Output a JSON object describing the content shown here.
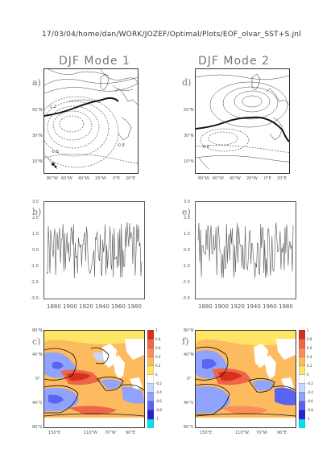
{
  "header": "17/03/04/home/dan/WORK/JOZEF/Optimal/Plots/EOF_olvar_SST+S.jnl",
  "columns": [
    {
      "title": "DJF Mode 1",
      "map_label": "a)",
      "ts_label": "b)",
      "sst_label": "c)",
      "map_lat_ticks": [
        "50°N",
        "30°N",
        "10°N"
      ],
      "map_lon_ticks": [
        "80°W",
        "60°W",
        "40°W",
        "20°W",
        "0°E",
        "20°E"
      ],
      "contour_labels": [
        "-1.2",
        "-0.8",
        "-0.8"
      ]
    },
    {
      "title": "DJF Mode 2",
      "map_label": "d)",
      "ts_label": "e)",
      "sst_label": "f)",
      "map_lat_ticks": [
        "50°N",
        "30°N",
        "10°N"
      ],
      "map_lon_ticks": [
        "80°W",
        "60°W",
        "40°W",
        "20°W",
        "0°E",
        "20°E"
      ],
      "contour_labels": [
        "-0.8"
      ]
    }
  ],
  "ts_y_ticks": [
    "3.0",
    "2.0",
    "1.0",
    "0.0",
    "-1.0",
    "-2.0",
    "-3.0"
  ],
  "ts_x_ticks": [
    "1880",
    "1900",
    "1920",
    "1940",
    "1960",
    "1980"
  ],
  "sst_lat_ticks": [
    "80°N",
    "40°N",
    "0°",
    "40°S",
    "80°S"
  ],
  "sst_lon_ticks": [
    "150°E",
    "110°W",
    "70°W",
    "90°E"
  ],
  "colorbar_ticks": [
    "1",
    "0.8",
    "0.6",
    "0.4",
    "0.2",
    "0",
    "-0.2",
    "-0.4",
    "-0.6",
    "-0.8",
    "-1"
  ],
  "colorbar_colors": [
    "#d7301f",
    "#ef6548",
    "#fc8d59",
    "#fdbb60",
    "#ffe566",
    "#ffffff",
    "#c7d6ff",
    "#8fa3ff",
    "#5a64f0",
    "#2b1fcf",
    "#00e0f0"
  ]
}
